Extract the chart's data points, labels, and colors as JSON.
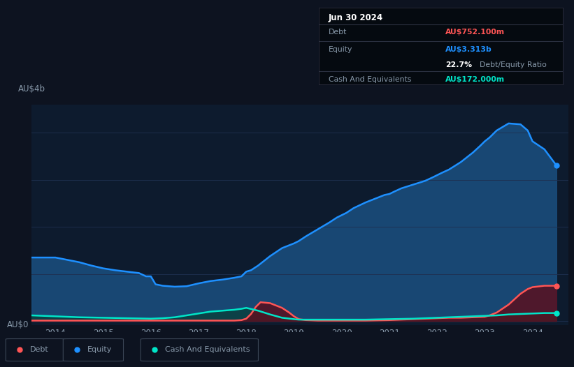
{
  "bg_color": "#0d1320",
  "plot_bg_color": "#0d1b2e",
  "grid_color": "#1e3050",
  "text_color": "#8899aa",
  "title_color": "#ffffff",
  "equity_color": "#1e90ff",
  "debt_color": "#ff5555",
  "cash_color": "#00e5c8",
  "equity_fill_color": "#1a5080",
  "debt_fill_color": "#5a1020",
  "cash_fill_color": "#0a4040",
  "ylabel_text": "AU$4b",
  "y0_text": "AU$0",
  "tooltip_date": "Jun 30 2024",
  "tooltip_debt_label": "Debt",
  "tooltip_debt_value": "AU$752.100m",
  "tooltip_equity_label": "Equity",
  "tooltip_equity_value": "AU$3.313b",
  "tooltip_ratio_value": "22.7%",
  "tooltip_ratio_label": "Debt/Equity Ratio",
  "tooltip_cash_label": "Cash And Equivalents",
  "tooltip_cash_value": "AU$172.000m",
  "legend_items": [
    "Debt",
    "Equity",
    "Cash And Equivalents"
  ],
  "xtick_labels": [
    "2014",
    "2015",
    "2016",
    "2017",
    "2018",
    "2019",
    "2020",
    "2021",
    "2022",
    "2023",
    "2024"
  ],
  "equity_x": [
    2013.5,
    2014.0,
    2014.25,
    2014.5,
    2014.75,
    2015.0,
    2015.25,
    2015.5,
    2015.75,
    2015.9,
    2016.0,
    2016.1,
    2016.25,
    2016.5,
    2016.75,
    2017.0,
    2017.25,
    2017.5,
    2017.75,
    2017.9,
    2018.0,
    2018.1,
    2018.25,
    2018.5,
    2018.75,
    2019.0,
    2019.1,
    2019.25,
    2019.5,
    2019.75,
    2019.9,
    2020.0,
    2020.1,
    2020.25,
    2020.5,
    2020.75,
    2020.9,
    2021.0,
    2021.1,
    2021.25,
    2021.5,
    2021.75,
    2021.9,
    2022.0,
    2022.1,
    2022.25,
    2022.5,
    2022.75,
    2022.9,
    2023.0,
    2023.1,
    2023.25,
    2023.5,
    2023.75,
    2023.9,
    2024.0,
    2024.25,
    2024.5
  ],
  "equity_y": [
    1.35,
    1.35,
    1.3,
    1.25,
    1.18,
    1.12,
    1.08,
    1.05,
    1.02,
    0.95,
    0.95,
    0.78,
    0.75,
    0.73,
    0.74,
    0.8,
    0.85,
    0.88,
    0.92,
    0.95,
    1.05,
    1.08,
    1.18,
    1.38,
    1.55,
    1.65,
    1.7,
    1.8,
    1.95,
    2.1,
    2.2,
    2.25,
    2.3,
    2.4,
    2.52,
    2.62,
    2.68,
    2.7,
    2.75,
    2.82,
    2.9,
    2.98,
    3.05,
    3.1,
    3.15,
    3.22,
    3.38,
    3.58,
    3.72,
    3.82,
    3.9,
    4.05,
    4.2,
    4.18,
    4.05,
    3.82,
    3.65,
    3.31
  ],
  "debt_x": [
    2013.5,
    2014.0,
    2014.5,
    2015.0,
    2015.5,
    2016.0,
    2016.5,
    2017.0,
    2017.5,
    2017.75,
    2017.9,
    2018.0,
    2018.1,
    2018.2,
    2018.3,
    2018.5,
    2018.75,
    2018.9,
    2019.0,
    2019.05,
    2019.1,
    2019.25,
    2019.5,
    2019.75,
    2020.0,
    2020.5,
    2021.0,
    2021.25,
    2021.5,
    2021.75,
    2022.0,
    2022.25,
    2022.5,
    2022.75,
    2023.0,
    2023.1,
    2023.25,
    2023.5,
    2023.75,
    2023.9,
    2024.0,
    2024.25,
    2024.5
  ],
  "debt_y": [
    0.01,
    0.01,
    0.01,
    0.01,
    0.01,
    0.01,
    0.01,
    0.01,
    0.01,
    0.01,
    0.02,
    0.05,
    0.15,
    0.3,
    0.4,
    0.38,
    0.28,
    0.18,
    0.1,
    0.07,
    0.04,
    0.02,
    0.01,
    0.01,
    0.01,
    0.01,
    0.02,
    0.03,
    0.04,
    0.05,
    0.06,
    0.07,
    0.07,
    0.08,
    0.09,
    0.12,
    0.18,
    0.35,
    0.58,
    0.68,
    0.72,
    0.75,
    0.75
  ],
  "cash_x": [
    2013.5,
    2014.0,
    2014.5,
    2015.0,
    2015.5,
    2016.0,
    2016.25,
    2016.5,
    2016.75,
    2017.0,
    2017.25,
    2017.5,
    2017.75,
    2017.9,
    2018.0,
    2018.25,
    2018.5,
    2018.75,
    2019.0,
    2019.1,
    2019.25,
    2019.5,
    2019.75,
    2020.0,
    2020.5,
    2021.0,
    2021.5,
    2021.75,
    2022.0,
    2022.25,
    2022.5,
    2022.75,
    2023.0,
    2023.25,
    2023.5,
    2023.75,
    2024.0,
    2024.25,
    2024.5
  ],
  "cash_y": [
    0.12,
    0.1,
    0.08,
    0.07,
    0.06,
    0.05,
    0.06,
    0.08,
    0.12,
    0.16,
    0.2,
    0.22,
    0.24,
    0.26,
    0.28,
    0.22,
    0.14,
    0.07,
    0.04,
    0.03,
    0.03,
    0.03,
    0.03,
    0.03,
    0.03,
    0.04,
    0.05,
    0.06,
    0.07,
    0.08,
    0.09,
    0.1,
    0.11,
    0.12,
    0.14,
    0.15,
    0.16,
    0.17,
    0.17
  ],
  "ylim": [
    -0.08,
    4.6
  ],
  "xlim": [
    2013.5,
    2024.75
  ]
}
